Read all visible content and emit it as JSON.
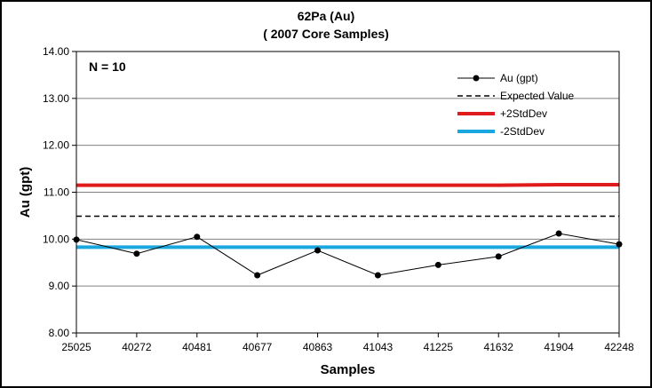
{
  "chart_data": {
    "type": "line",
    "title": "62Pa (Au)",
    "subtitle": "( 2007 Core Samples)",
    "xlabel": "Samples",
    "ylabel": "Au (gpt)",
    "annotation": "N = 10",
    "categories": [
      "25025",
      "40272",
      "40481",
      "40677",
      "40863",
      "41043",
      "41225",
      "41632",
      "41904",
      "42248"
    ],
    "ylim": [
      8.0,
      14.0
    ],
    "yticks": [
      "8.00",
      "9.00",
      "10.00",
      "11.00",
      "12.00",
      "13.00",
      "14.00"
    ],
    "grid": true,
    "legend_position": "top-right",
    "series": [
      {
        "name": "Au (gpt)",
        "style": "line-marker",
        "color": "#000000",
        "values": [
          9.99,
          9.69,
          10.05,
          9.23,
          9.76,
          9.23,
          9.45,
          9.63,
          10.12,
          9.89
        ]
      },
      {
        "name": "Expected Value",
        "style": "dashed",
        "color": "#000000",
        "values": [
          10.49,
          10.49,
          10.49,
          10.49,
          10.49,
          10.49,
          10.49,
          10.49,
          10.49,
          10.49
        ]
      },
      {
        "name": "+2StdDev",
        "style": "solid-thick",
        "color": "#e01b1b",
        "values": [
          11.15,
          11.15,
          11.15,
          11.15,
          11.15,
          11.15,
          11.15,
          11.15,
          11.16,
          11.16
        ]
      },
      {
        "name": "-2StdDev",
        "style": "solid-thick",
        "color": "#1aa7e0",
        "values": [
          9.83,
          9.83,
          9.83,
          9.83,
          9.83,
          9.83,
          9.83,
          9.83,
          9.83,
          9.83
        ]
      }
    ]
  }
}
